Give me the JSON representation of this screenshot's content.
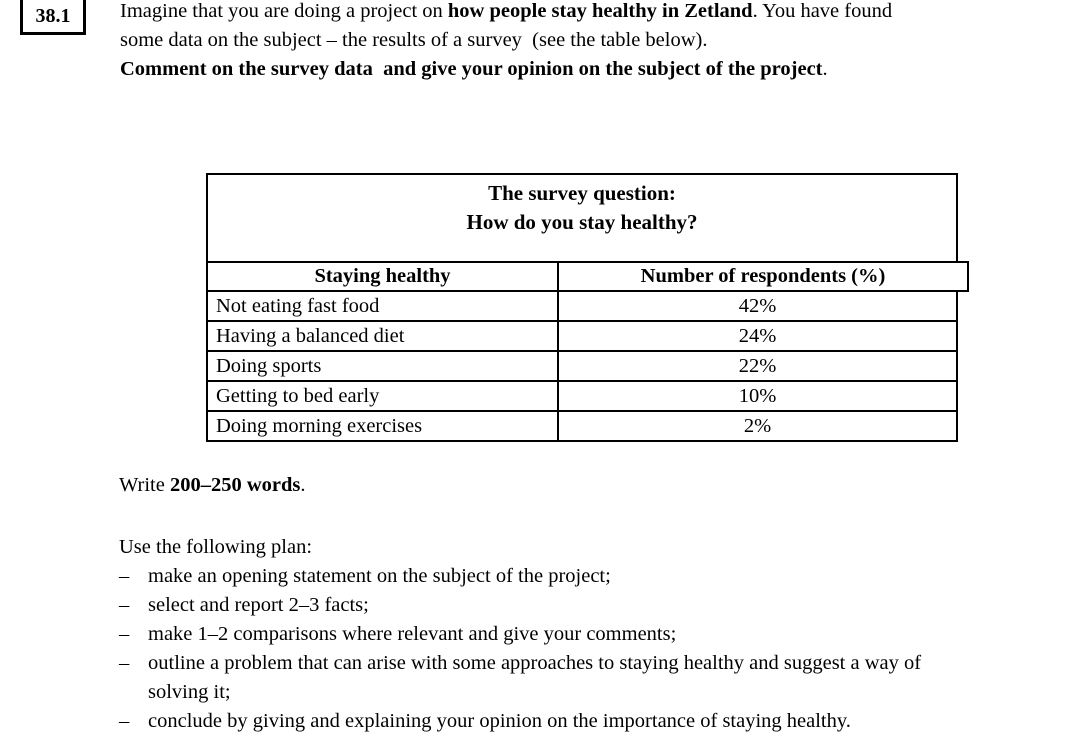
{
  "task": {
    "number": "38.1"
  },
  "intro": {
    "line1_pre": "Imagine that you are doing a project on ",
    "line1_bold": "how people stay healthy in Zetland",
    "line1_post": ". You have found",
    "line2": "some data on the subject – the results of a survey  (see the table below).",
    "line3_bold": "Comment on the survey data  and give your opinion on the subject of the project",
    "line3_post": "."
  },
  "survey_table": {
    "title_line1": "The survey question:",
    "title_line2": "How do you stay healthy?",
    "col_activity": "Staying healthy",
    "col_respondents": "Number of respondents (%)",
    "rows": [
      {
        "activity": "Not eating fast food",
        "respondents": "42%"
      },
      {
        "activity": "Having a balanced diet",
        "respondents": "24%"
      },
      {
        "activity": "Doing sports",
        "respondents": "22%"
      },
      {
        "activity": "Getting to bed early",
        "respondents": "10%"
      },
      {
        "activity": "Doing morning exercises",
        "respondents": "2%"
      }
    ]
  },
  "word_count": {
    "pre": "Write ",
    "bold": "200–250 words",
    "post": "."
  },
  "plan": {
    "heading": "Use the following plan:",
    "bullet": "–",
    "items": [
      {
        "line1": "make an opening statement on the subject of the project;"
      },
      {
        "line1": "select and report 2–3 facts;"
      },
      {
        "line1": "make 1–2 comparisons where relevant and give your comments;"
      },
      {
        "line1": "outline a problem that can arise with some approaches to staying healthy and suggest a way of",
        "line2": "solving it;"
      },
      {
        "line1": "conclude by giving and explaining your opinion on the importance of staying healthy."
      }
    ]
  }
}
